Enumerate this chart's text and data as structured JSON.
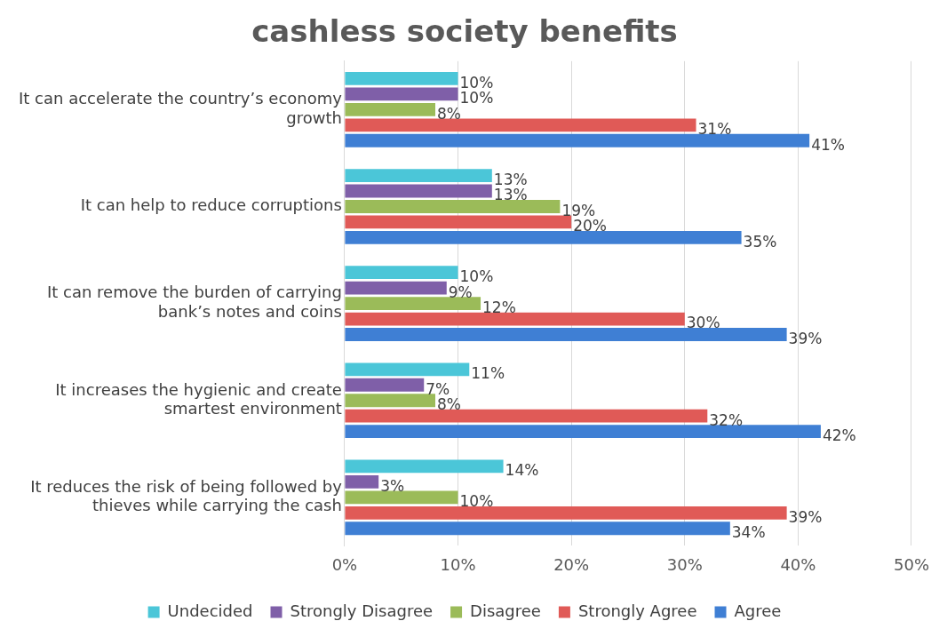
{
  "chart_data": {
    "type": "bar",
    "title": "cashless society benefits",
    "orientation": "horizontal",
    "categories": [
      "It can accelerate the country’s economy growth",
      "It can help to reduce corruptions",
      "It can remove the burden of carrying bank’s notes and coins",
      "It increases the hygienic and create smartest environment",
      "It reduces the risk of being followed by thieves while carrying the cash"
    ],
    "series": [
      {
        "name": "Undecided",
        "color": "#4bc6d8",
        "values": [
          10,
          13,
          10,
          11,
          14
        ],
        "value_labels": [
          "10%",
          "13%",
          "10%",
          "11%",
          "14%"
        ]
      },
      {
        "name": "Strongly Disagree",
        "color": "#7f5fa8",
        "values": [
          10,
          13,
          9,
          7,
          3
        ],
        "value_labels": [
          "10%",
          "13%",
          "9%",
          "7%",
          "3%"
        ]
      },
      {
        "name": "Disagree",
        "color": "#9bbb59",
        "values": [
          8,
          19,
          12,
          8,
          10
        ],
        "value_labels": [
          "8%",
          "19%",
          "12%",
          "8%",
          "10%"
        ]
      },
      {
        "name": "Strongly Agree",
        "color": "#e05a57",
        "values": [
          31,
          20,
          30,
          32,
          39
        ],
        "value_labels": [
          "31%",
          "20%",
          "30%",
          "32%",
          "39%"
        ]
      },
      {
        "name": "Agree",
        "color": "#3f7fd4",
        "values": [
          41,
          35,
          39,
          42,
          34
        ],
        "value_labels": [
          "41%",
          "35%",
          "39%",
          "42%",
          "34%"
        ]
      }
    ],
    "xlim": [
      0,
      50
    ],
    "xticks": [
      {
        "value": 0,
        "label": "0%"
      },
      {
        "value": 10,
        "label": "10%"
      },
      {
        "value": 20,
        "label": "20%"
      },
      {
        "value": 30,
        "label": "30%"
      },
      {
        "value": 40,
        "label": "40%"
      },
      {
        "value": 50,
        "label": "50%"
      }
    ],
    "grid": "x",
    "legend": "bottom"
  }
}
